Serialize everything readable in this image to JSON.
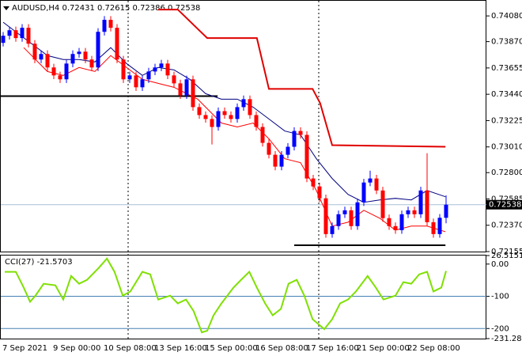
{
  "chart_data": [
    {
      "type": "candlestick",
      "title": "AUDUSD,H4 0.72431 0.72615 0.72386 0.72538",
      "categories": [
        "7 Sep 2021",
        null,
        null,
        null,
        null,
        null,
        null,
        null,
        "9 Sep 00:00",
        null,
        null,
        null,
        null,
        null,
        null,
        null,
        "10 Sep 08:00",
        null,
        null,
        null,
        null,
        null,
        null,
        null,
        "13 Sep 16:00",
        null,
        null,
        null,
        null,
        null,
        null,
        null,
        "15 Sep 00:00",
        null,
        null,
        null,
        null,
        null,
        null,
        null,
        "16 Sep 08:00",
        null,
        null,
        null,
        null,
        null,
        null,
        null,
        "17 Sep 16:00",
        null,
        null,
        null,
        null,
        null,
        null,
        null,
        "21 Sep 00:00",
        null,
        null,
        null,
        null,
        null,
        null,
        null,
        "22 Sep 08:00",
        null,
        null,
        null,
        null,
        null,
        null
      ],
      "open": [
        0.7386,
        0.73918,
        0.73963,
        0.73899,
        0.73983,
        0.73853,
        0.73724,
        0.73769,
        0.73659,
        0.73594,
        0.73562,
        0.73691,
        0.73769,
        0.73788,
        0.73724,
        0.73659,
        0.7395,
        0.74048,
        0.73983,
        0.73724,
        0.73562,
        0.73594,
        0.73497,
        0.73562,
        0.73626,
        0.73659,
        0.73691,
        0.73594,
        0.73529,
        0.73432,
        0.73562,
        0.73335,
        0.7327,
        0.73238,
        0.73173,
        0.73302,
        0.7327,
        0.73238,
        0.73335,
        0.734,
        0.7327,
        0.73173,
        0.73043,
        0.72946,
        0.72849,
        0.72946,
        0.73011,
        0.7314,
        0.73108,
        0.72752,
        0.72687,
        0.7259,
        0.72298,
        0.72363,
        0.7246,
        0.72492,
        0.72363,
        0.72557,
        0.72719,
        0.72752,
        0.72654,
        0.72428,
        0.72363,
        0.7233,
        0.7246,
        0.72492,
        0.7246,
        0.72654,
        0.72395,
        0.72298,
        0.72431
      ],
      "high": [
        0.73948,
        0.73993,
        0.73993,
        0.74013,
        0.74013,
        0.73883,
        0.73799,
        0.73799,
        0.73689,
        0.73624,
        0.73721,
        0.73799,
        0.73818,
        0.73818,
        0.73754,
        0.7398,
        0.74078,
        0.74078,
        0.74013,
        0.73754,
        0.73624,
        0.73624,
        0.73592,
        0.73656,
        0.73689,
        0.73721,
        0.73721,
        0.73624,
        0.73559,
        0.73592,
        0.73592,
        0.73365,
        0.733,
        0.73268,
        0.73332,
        0.73332,
        0.733,
        0.73365,
        0.7343,
        0.7343,
        0.733,
        0.73203,
        0.73073,
        0.72976,
        0.72976,
        0.73041,
        0.7317,
        0.7317,
        0.73138,
        0.72782,
        0.72717,
        0.7262,
        0.72393,
        0.7249,
        0.72522,
        0.72522,
        0.72587,
        0.72749,
        0.72816,
        0.72782,
        0.72684,
        0.72458,
        0.72393,
        0.7249,
        0.72522,
        0.72522,
        0.72684,
        0.72959,
        0.72425,
        0.72461,
        0.72615
      ],
      "low": [
        0.7383,
        0.73888,
        0.73869,
        0.73869,
        0.73823,
        0.73694,
        0.73694,
        0.73629,
        0.73564,
        0.73532,
        0.73532,
        0.73661,
        0.73739,
        0.73694,
        0.73629,
        0.73629,
        0.7392,
        0.73953,
        0.73694,
        0.73532,
        0.73532,
        0.73467,
        0.73467,
        0.73532,
        0.73596,
        0.73629,
        0.73564,
        0.73499,
        0.73402,
        0.73402,
        0.73305,
        0.7324,
        0.73208,
        0.7303,
        0.73143,
        0.7324,
        0.73208,
        0.73208,
        0.73305,
        0.7324,
        0.73143,
        0.73013,
        0.72916,
        0.72819,
        0.72819,
        0.72916,
        0.72981,
        0.73078,
        0.72722,
        0.72657,
        0.7256,
        0.72268,
        0.72268,
        0.72333,
        0.7243,
        0.72333,
        0.72333,
        0.72527,
        0.72689,
        0.72624,
        0.72398,
        0.72333,
        0.723,
        0.723,
        0.7243,
        0.7243,
        0.7243,
        0.72365,
        0.72268,
        0.72268,
        0.72386
      ],
      "close": [
        0.73918,
        0.73963,
        0.73899,
        0.73983,
        0.73853,
        0.73724,
        0.73769,
        0.73659,
        0.73594,
        0.73562,
        0.73691,
        0.73769,
        0.73788,
        0.73724,
        0.73659,
        0.7395,
        0.74048,
        0.73983,
        0.73724,
        0.73562,
        0.73594,
        0.73497,
        0.73562,
        0.73626,
        0.73659,
        0.73691,
        0.73594,
        0.73529,
        0.73432,
        0.73562,
        0.73335,
        0.7327,
        0.73238,
        0.73173,
        0.73302,
        0.7327,
        0.73238,
        0.73335,
        0.734,
        0.7327,
        0.73173,
        0.73043,
        0.72946,
        0.72849,
        0.72946,
        0.73011,
        0.7314,
        0.73108,
        0.72752,
        0.72687,
        0.7259,
        0.72298,
        0.72363,
        0.7246,
        0.72492,
        0.72363,
        0.72557,
        0.72719,
        0.72752,
        0.72654,
        0.72428,
        0.72363,
        0.7233,
        0.7246,
        0.72492,
        0.7246,
        0.72654,
        0.72395,
        0.72298,
        0.72431,
        0.72538
      ],
      "up_color": "#0000ff",
      "down_color": "#ff0000",
      "series": [
        {
          "color": "#000080",
          "width": 1,
          "x": [
            0,
            2,
            4.5,
            7,
            9.5,
            12,
            14.5,
            17,
            19.5,
            22,
            24.5,
            27,
            29.5,
            32,
            34.5,
            37,
            39.5,
            42,
            44.5,
            47,
            49.5,
            52,
            54.5,
            57,
            59.5,
            62,
            64.5,
            67,
            69.9
          ],
          "values": [
            0.74028,
            0.7395,
            0.73853,
            0.73756,
            0.73724,
            0.73724,
            0.73704,
            0.73821,
            0.73691,
            0.73594,
            0.73659,
            0.73639,
            0.73562,
            0.73445,
            0.734,
            0.734,
            0.73335,
            0.73238,
            0.7314,
            0.73108,
            0.72914,
            0.72752,
            0.72622,
            0.72557,
            0.72577,
            0.7259,
            0.72577,
            0.72654,
            0.72603
          ]
        },
        {
          "color": "#ff0000",
          "width": 1,
          "x": [
            3.25,
            7,
            9.5,
            12,
            14.5,
            17,
            19.5,
            22,
            24.5,
            27,
            30.75,
            34.5,
            37,
            39.5,
            42,
            44.5,
            47,
            49.5,
            52,
            54.5,
            57,
            59.5,
            62,
            64.5,
            67,
            69.9
          ],
          "values": [
            0.73821,
            0.73626,
            0.73594,
            0.73659,
            0.73626,
            0.73756,
            0.73659,
            0.73562,
            0.73529,
            0.73497,
            0.734,
            0.73205,
            0.73173,
            0.73205,
            0.73076,
            0.72914,
            0.72881,
            0.72654,
            0.72363,
            0.72395,
            0.72492,
            0.72428,
            0.7233,
            0.72363,
            0.72363,
            0.72317
          ]
        },
        {
          "color": "#e00000",
          "width": 2,
          "x": [
            24.5,
            27.6,
            32.25,
            40.1,
            42,
            48.9,
            50.1,
            52,
            69.9
          ],
          "values": [
            0.74132,
            0.74132,
            0.73899,
            0.73899,
            0.73484,
            0.73484,
            0.73367,
            0.73024,
            0.73011
          ]
        }
      ],
      "hlines": [
        {
          "value": 0.73425,
          "x": [
            -0.5,
            33.9
          ]
        },
        {
          "value": 0.72207,
          "x": [
            46,
            69.9
          ]
        }
      ],
      "ylim": [
        0.72155,
        0.7421
      ],
      "yticks": [
        {
          "value": 0.7408,
          "label": "0.74080"
        },
        {
          "value": 0.7387,
          "label": "0.73870"
        },
        0.73655,
        {
          "value": 0.7344,
          "label": "0.73440"
        },
        0.73225,
        {
          "value": 0.7301,
          "label": "0.73010"
        },
        {
          "value": 0.728,
          "label": "0.72800"
        },
        0.72585,
        {
          "value": 0.7237,
          "label": "0.72370"
        },
        0.72155
      ]
    },
    {
      "type": "line",
      "title": "CCI(27) -21.5703",
      "series": [
        {
          "color": "#7fe000",
          "x": [
            0.25,
            2,
            3.25,
            4.25,
            5.1,
            6.4,
            8.25,
            9.5,
            10.75,
            12,
            13.25,
            15.1,
            16.4,
            17.6,
            18.9,
            20.1,
            22,
            23.25,
            24.5,
            26.4,
            27.6,
            28.9,
            30.1,
            31.4,
            32.25,
            33.25,
            34.5,
            36.4,
            37.6,
            38.9,
            40.1,
            41.4,
            42.6,
            43.9,
            45.1,
            46.4,
            47.6,
            48.9,
            50.75,
            52,
            53.25,
            54.5,
            55.75,
            57.6,
            58.9,
            60.1,
            62,
            63.25,
            64.5,
            65.75,
            67,
            68,
            69.25,
            70
          ],
          "values": [
            -24,
            -24,
            -73,
            -117,
            -98,
            -61,
            -66,
            -110,
            -37,
            -61,
            -49,
            -12,
            17,
            -24,
            -98,
            -85,
            -24,
            -32,
            -110,
            -98,
            -122,
            -110,
            -146,
            -212,
            -207,
            -159,
            -122,
            -73,
            -49,
            -24,
            -73,
            -122,
            -159,
            -139,
            -61,
            -49,
            -98,
            -171,
            -202,
            -171,
            -122,
            -110,
            -85,
            -37,
            -73,
            -110,
            -98,
            -56,
            -61,
            -32,
            -24,
            -85,
            -73,
            -21.5703
          ]
        }
      ],
      "levels": [
        -100,
        -200
      ],
      "ylim": [
        -231.2879,
        26.5151
      ],
      "yticks": [
        26.5151,
        {
          "value": 0,
          "label": "0.00"
        },
        -100,
        -200,
        -231.2879
      ]
    }
  ]
}
